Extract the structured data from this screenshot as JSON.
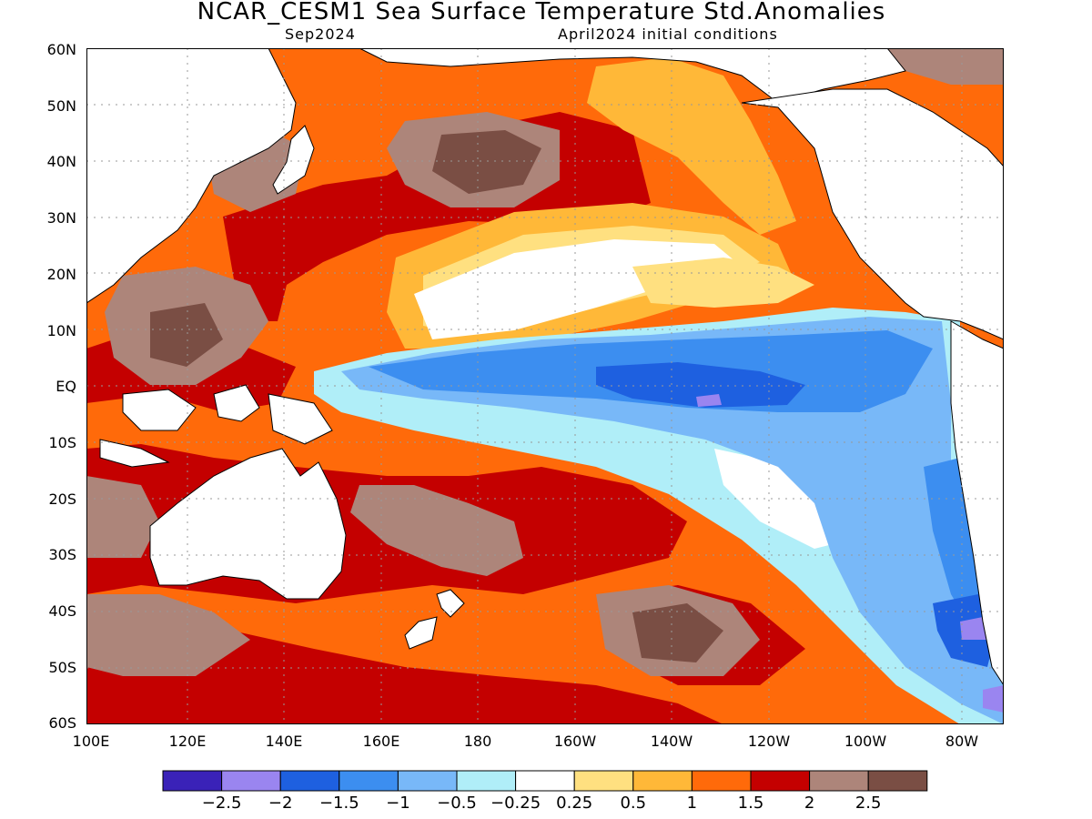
{
  "header": {
    "title": "NCAR_CESM1 Sea Surface Temperature Std.Anomalies",
    "valid_month": "Sep2024",
    "initial_conditions": "April2024 initial conditions"
  },
  "axes": {
    "lat_labels": [
      "60N",
      "50N",
      "40N",
      "30N",
      "20N",
      "10N",
      "EQ",
      "10S",
      "20S",
      "30S",
      "40S",
      "50S",
      "60S"
    ],
    "lon_labels": [
      "100E",
      "120E",
      "140E",
      "160E",
      "180",
      "160W",
      "140W",
      "120W",
      "100W",
      "80W"
    ]
  },
  "legend": {
    "colors": [
      "#3a22b8",
      "#9a85f0",
      "#1e60e0",
      "#3c8ef0",
      "#78b8f8",
      "#b0eef8",
      "#ffffff",
      "#ffe080",
      "#ffb838",
      "#ff6a0a",
      "#c40000",
      "#ad857a",
      "#7a4e44"
    ],
    "labels": [
      "−2.5",
      "−2",
      "−1.5",
      "−1",
      "−0.5",
      "−0.25",
      "0.25",
      "0.5",
      "1",
      "1.5",
      "2",
      "2.5"
    ]
  },
  "map_style": {
    "land_color": "#ffffff",
    "coast_color": "#000000",
    "grid": "dotted",
    "background_color": "#ff6a0a"
  }
}
